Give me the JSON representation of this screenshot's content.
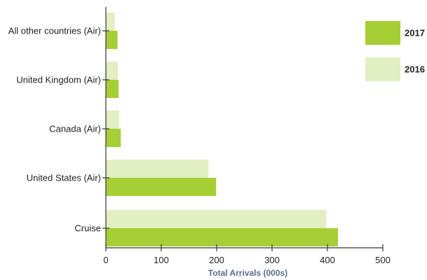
{
  "chart_data": {
    "type": "bar",
    "orientation": "horizontal",
    "categories": [
      "All other countries (Air)",
      "United Kingdom (Air)",
      "Canada (Air)",
      "United States (Air)",
      "Cruise"
    ],
    "series": [
      {
        "name": "2016",
        "values": [
          16,
          22,
          24,
          185,
          398
        ],
        "color": "#e1efc2"
      },
      {
        "name": "2017",
        "values": [
          21,
          23,
          27,
          199,
          419
        ],
        "color": "#a5cf35"
      }
    ],
    "xlabel": "Total Arrivals (000s)",
    "ylabel": "",
    "xlim": [
      0,
      500
    ],
    "xticks": [
      0,
      100,
      200,
      300,
      400,
      500
    ],
    "grid": false,
    "legend": {
      "placement": "right",
      "order": [
        "2017",
        "2016"
      ]
    },
    "axis_color": "#333333"
  }
}
